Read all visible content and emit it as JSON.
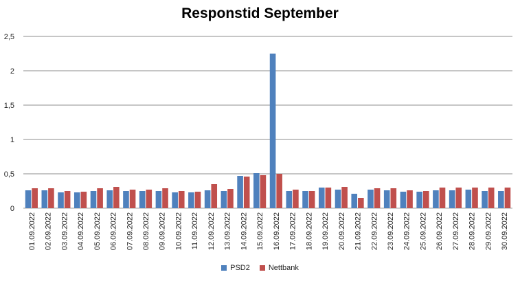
{
  "chart_data": {
    "type": "bar",
    "title": "Responstid September",
    "xlabel": "",
    "ylabel": "",
    "ylim": [
      0,
      2.5
    ],
    "yticks": [
      "0",
      "0,5",
      "1",
      "1,5",
      "2",
      "2,5"
    ],
    "grid": true,
    "legend_position": "bottom",
    "categories": [
      "01.09.2022",
      "02.09.2022",
      "03.09.2022",
      "04.09.2022",
      "05.09.2022",
      "06.09.2022",
      "07.09.2022",
      "08.09.2022",
      "09.09.2022",
      "10.09.2022",
      "11.09.2022",
      "12.09.2022",
      "13.09.2022",
      "14.09.2022",
      "15.09.2022",
      "16.09.2022",
      "17.09.2022",
      "18.09.2022",
      "19.09.2022",
      "20.09.2022",
      "21.09.2022",
      "22.09.2022",
      "23.09.2022",
      "24.09.2022",
      "25.09.2022",
      "26.09.2022",
      "27.09.2022",
      "28.09.2022",
      "29.09.2022",
      "30.09.2022"
    ],
    "series": [
      {
        "name": "PSD2",
        "color": "#4F81BD",
        "values": [
          0.26,
          0.26,
          0.23,
          0.23,
          0.25,
          0.26,
          0.25,
          0.25,
          0.25,
          0.23,
          0.23,
          0.26,
          0.25,
          0.47,
          0.51,
          2.25,
          0.25,
          0.25,
          0.3,
          0.27,
          0.21,
          0.27,
          0.26,
          0.24,
          0.24,
          0.26,
          0.26,
          0.27,
          0.25,
          0.25
        ]
      },
      {
        "name": "Nettbank",
        "color": "#C0504D",
        "values": [
          0.29,
          0.29,
          0.25,
          0.24,
          0.29,
          0.31,
          0.27,
          0.27,
          0.29,
          0.25,
          0.24,
          0.35,
          0.28,
          0.46,
          0.48,
          0.5,
          0.27,
          0.25,
          0.3,
          0.31,
          0.15,
          0.29,
          0.29,
          0.26,
          0.25,
          0.3,
          0.3,
          0.3,
          0.3,
          0.3
        ]
      }
    ]
  }
}
